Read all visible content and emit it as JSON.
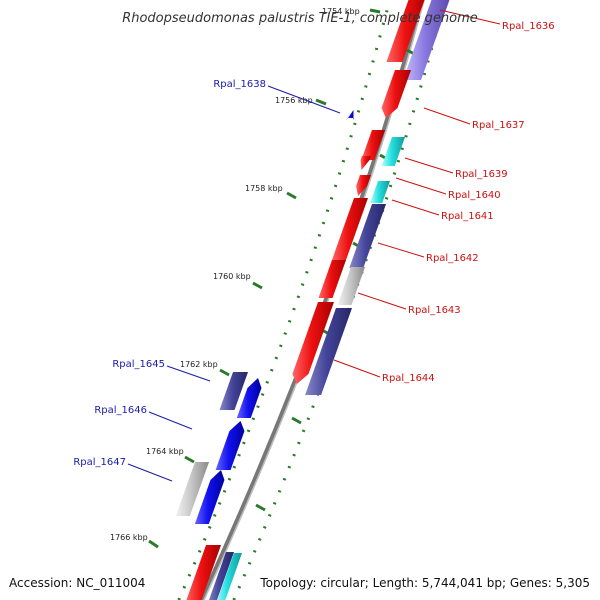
{
  "title": "Rhodopseudomonas palustris TIE-1, complete genome",
  "footer": {
    "accession": "Accession: NC_011004",
    "topology": "Topology: circular; Length: 5,744,041 bp; Genes: 5,305"
  },
  "colors": {
    "backbone": "#8c8c8c",
    "forward_label": "#1a1aa8",
    "reverse_label": "#cc1010",
    "tick": "#2a7a2a",
    "red": "#ee1111",
    "blue": "#1111ee",
    "navy": "#44449a",
    "lavender": "#8877dd",
    "cyan": "#22dddd",
    "gray": "#c8c8c8"
  },
  "ticks": [
    {
      "kbp": 1754,
      "label": "1754 kbp"
    },
    {
      "kbp": 1756,
      "label": "1756 kbp"
    },
    {
      "kbp": 1758,
      "label": "1758 kbp"
    },
    {
      "kbp": 1760,
      "label": "1760 kbp"
    },
    {
      "kbp": 1762,
      "label": "1762 kbp"
    },
    {
      "kbp": 1764,
      "label": "1764 kbp"
    },
    {
      "kbp": 1766,
      "label": "1766 kbp"
    }
  ],
  "genes": [
    {
      "label": "Rpal_1636",
      "strand": "reverse"
    },
    {
      "label": "Rpal_1637",
      "strand": "reverse"
    },
    {
      "label": "Rpal_1638",
      "strand": "forward"
    },
    {
      "label": "Rpal_1639",
      "strand": "reverse"
    },
    {
      "label": "Rpal_1640",
      "strand": "reverse"
    },
    {
      "label": "Rpal_1641",
      "strand": "reverse"
    },
    {
      "label": "Rpal_1642",
      "strand": "reverse"
    },
    {
      "label": "Rpal_1643",
      "strand": "reverse"
    },
    {
      "label": "Rpal_1644",
      "strand": "reverse"
    },
    {
      "label": "Rpal_1645",
      "strand": "forward"
    },
    {
      "label": "Rpal_1646",
      "strand": "forward"
    },
    {
      "label": "Rpal_1647",
      "strand": "forward"
    }
  ]
}
